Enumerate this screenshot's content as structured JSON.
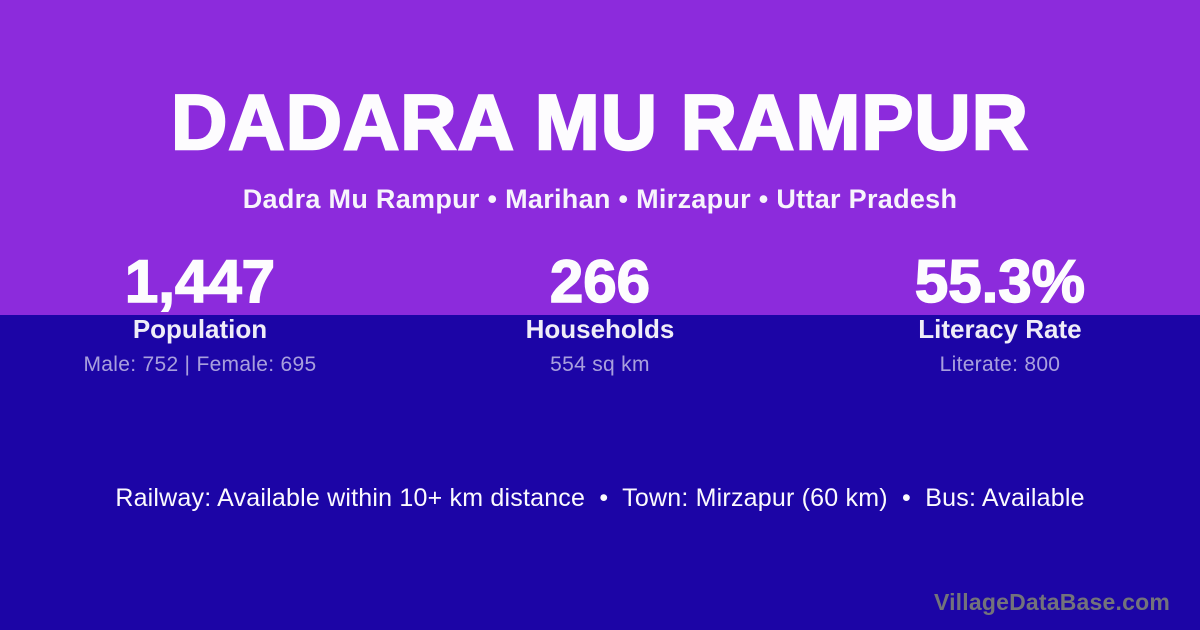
{
  "theme": {
    "purple_top": "#8C2BDC",
    "indigo_bottom": "#1C05A6",
    "text_primary": "#FDFCFE",
    "text_muted_lavender": "rgba(255,255,255,0.62)",
    "watermark_gray": "#73737B"
  },
  "header": {
    "title": "DADARA MU RAMPUR",
    "breadcrumb": "Dadra Mu Rampur • Marihan • Mirzapur • Uttar Pradesh"
  },
  "stats": [
    {
      "value": "1,447",
      "label": "Population",
      "detail": "Male: 752 | Female: 695"
    },
    {
      "value": "266",
      "label": "Households",
      "detail": "554 sq km"
    },
    {
      "value": "55.3%",
      "label": "Literacy Rate",
      "detail": "Literate: 800"
    }
  ],
  "footer": {
    "amenities": "Railway: Available within 10+ km distance  •  Town: Mirzapur (60 km)  •  Bus: Available",
    "watermark": "VillageDataBase.com"
  }
}
